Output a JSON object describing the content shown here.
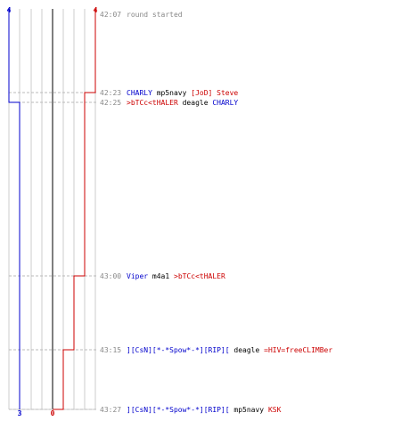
{
  "colors": {
    "team_blue": "#0000cc",
    "team_red": "#cc0000",
    "text": "#000000",
    "muted": "#888888",
    "grid": "#cccccc",
    "center": "#555555",
    "guide": "#bbbbbb"
  },
  "scores": {
    "blue_start": "4",
    "red_start": "4",
    "blue_end": "3",
    "red_end": "0"
  },
  "events": [
    {
      "time": "42:07",
      "parts": [
        {
          "text": "round started",
          "color": "muted"
        }
      ]
    },
    {
      "time": "42:23",
      "parts": [
        {
          "text": "CHARLY",
          "color": "team_blue"
        },
        {
          "text": " mp5navy ",
          "color": "text"
        },
        {
          "text": "[JoD] Steve",
          "color": "team_red"
        }
      ]
    },
    {
      "time": "42:25",
      "parts": [
        {
          "text": ">bTCc<tHALER",
          "color": "team_red"
        },
        {
          "text": " deagle ",
          "color": "text"
        },
        {
          "text": "CHARLY",
          "color": "team_blue"
        }
      ]
    },
    {
      "time": "43:00",
      "parts": [
        {
          "text": "Viper",
          "color": "team_blue"
        },
        {
          "text": " m4a1 ",
          "color": "text"
        },
        {
          "text": ">bTCc<tHALER",
          "color": "team_red"
        }
      ]
    },
    {
      "time": "43:15",
      "parts": [
        {
          "text": "][CsN][*-*Spow*-*][RIP][",
          "color": "team_blue"
        },
        {
          "text": " deagle ",
          "color": "text"
        },
        {
          "text": "=HIV=freeCLIMBer",
          "color": "team_red"
        }
      ]
    },
    {
      "time": "43:27",
      "parts": [
        {
          "text": "][CsN][*-*Spow*-*][RIP][",
          "color": "team_blue"
        },
        {
          "text": " mp5navy ",
          "color": "text"
        },
        {
          "text": "KSK",
          "color": "team_red"
        }
      ]
    }
  ]
}
